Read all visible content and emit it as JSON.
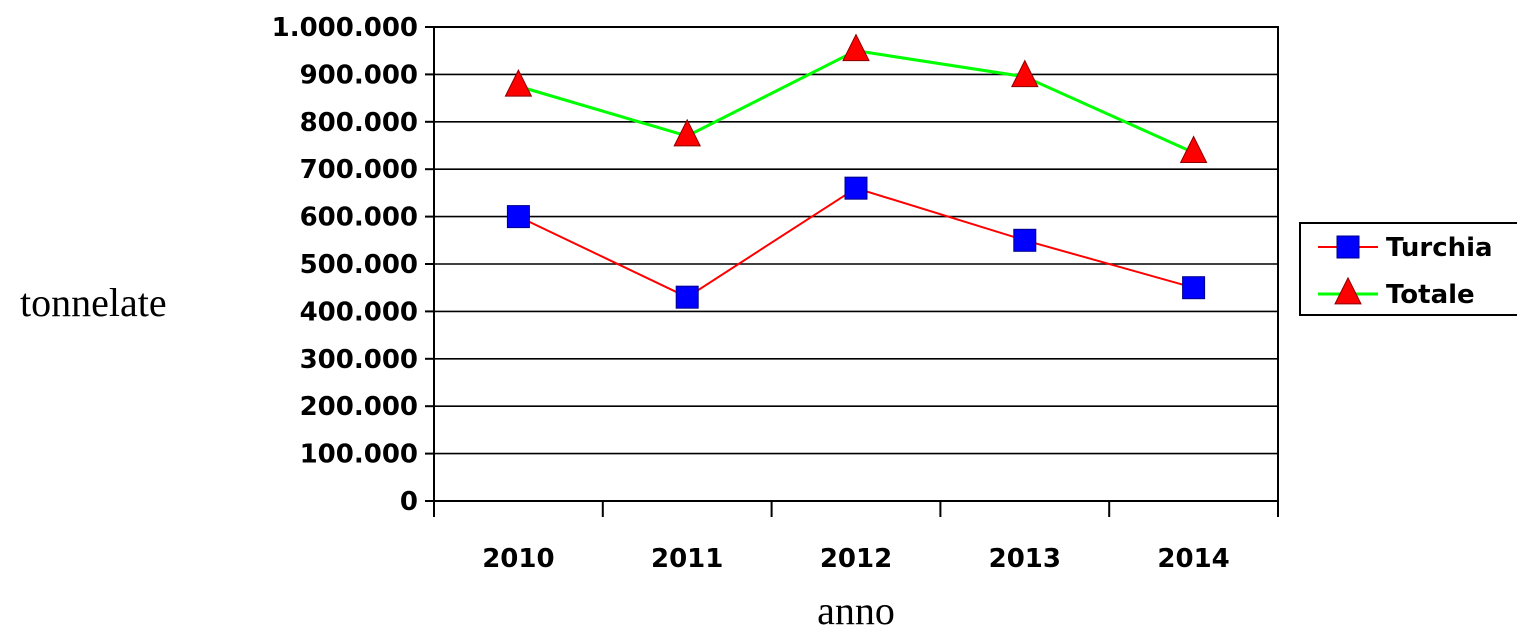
{
  "chart_data": {
    "type": "line",
    "title": "",
    "xlabel": "anno",
    "ylabel": "tonnelate",
    "categories": [
      "2010",
      "2011",
      "2012",
      "2013",
      "2014"
    ],
    "ylim": [
      0,
      1000000
    ],
    "yticks": [
      0,
      100000,
      200000,
      300000,
      400000,
      500000,
      600000,
      700000,
      800000,
      900000,
      1000000
    ],
    "ytick_labels": [
      "0",
      "100.000",
      "200.000",
      "300.000",
      "400.000",
      "500.000",
      "600.000",
      "700.000",
      "800.000",
      "900.000",
      "1.000.000"
    ],
    "grid": true,
    "legend_position": "right",
    "series": [
      {
        "name": "Turchia",
        "values": [
          600000,
          430000,
          660000,
          550000,
          450000
        ],
        "line_color": "#ff0000",
        "marker": "square",
        "marker_color": "#0000ff"
      },
      {
        "name": "Totale",
        "values": [
          875000,
          770000,
          950000,
          895000,
          735000
        ],
        "line_color": "#00ff00",
        "marker": "triangle",
        "marker_color": "#ff0000"
      }
    ]
  }
}
